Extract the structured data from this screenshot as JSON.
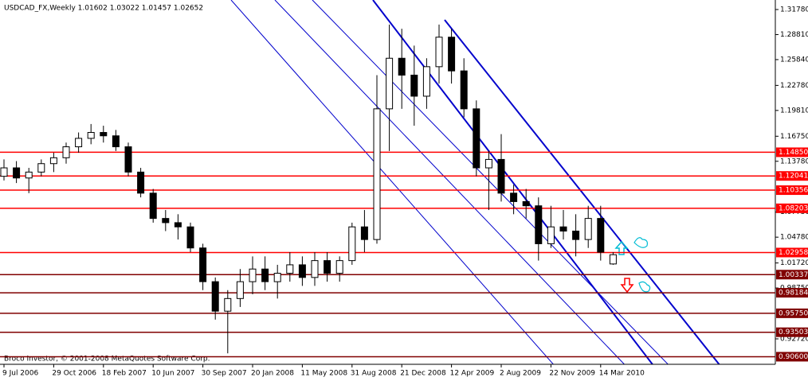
{
  "chart_data": {
    "type": "candlestick",
    "title": "USDCAD_FX,Weekly  1.01602 1.03022 1.01457 1.02652",
    "footer": "Broco Investor, © 2001-2008 MetaQuotes Software Corp.",
    "categories": [
      "9 Jul 2006",
      null,
      null,
      null,
      "29 Oct 2006",
      null,
      null,
      null,
      "18 Feb 2007",
      null,
      null,
      null,
      "10 Jun 2007",
      null,
      null,
      null,
      "30 Sep 2007",
      null,
      null,
      null,
      "20 Jan 2008",
      null,
      null,
      null,
      "11 May 2008",
      null,
      null,
      null,
      "31 Aug 2008",
      null,
      null,
      null,
      "21 Dec 2008",
      null,
      null,
      null,
      "12 Apr 2009",
      null,
      null,
      null,
      "2 Aug 2009",
      null,
      null,
      null,
      "22 Nov 2009",
      null,
      null,
      null,
      "14 Mar 2010",
      null
    ],
    "ohlc": [
      [
        1.12,
        1.14,
        1.115,
        1.13
      ],
      [
        1.13,
        1.138,
        1.112,
        1.118
      ],
      [
        1.118,
        1.13,
        1.1,
        1.125
      ],
      [
        1.125,
        1.14,
        1.12,
        1.135
      ],
      [
        1.135,
        1.148,
        1.125,
        1.142
      ],
      [
        1.142,
        1.16,
        1.135,
        1.155
      ],
      [
        1.155,
        1.172,
        1.148,
        1.165
      ],
      [
        1.165,
        1.182,
        1.158,
        1.172
      ],
      [
        1.172,
        1.18,
        1.16,
        1.168
      ],
      [
        1.168,
        1.175,
        1.15,
        1.155
      ],
      [
        1.155,
        1.16,
        1.12,
        1.125
      ],
      [
        1.125,
        1.13,
        1.095,
        1.1
      ],
      [
        1.1,
        1.105,
        1.065,
        1.07
      ],
      [
        1.07,
        1.08,
        1.055,
        1.065
      ],
      [
        1.065,
        1.075,
        1.045,
        1.06
      ],
      [
        1.06,
        1.065,
        1.03,
        1.035
      ],
      [
        1.035,
        1.04,
        0.985,
        0.995
      ],
      [
        0.995,
        1.0,
        0.95,
        0.96
      ],
      [
        0.96,
        0.985,
        0.91,
        0.975
      ],
      [
        0.975,
        1.01,
        0.965,
        0.995
      ],
      [
        0.995,
        1.025,
        0.98,
        1.01
      ],
      [
        1.01,
        1.025,
        0.985,
        0.995
      ],
      [
        0.995,
        1.015,
        0.975,
        1.005
      ],
      [
        1.005,
        1.03,
        0.995,
        1.015
      ],
      [
        1.015,
        1.025,
        0.99,
        1.0
      ],
      [
        1.0,
        1.03,
        0.99,
        1.02
      ],
      [
        1.02,
        1.03,
        0.995,
        1.005
      ],
      [
        1.005,
        1.025,
        0.995,
        1.02
      ],
      [
        1.02,
        1.065,
        1.015,
        1.06
      ],
      [
        1.06,
        1.08,
        1.03,
        1.045
      ],
      [
        1.045,
        1.24,
        1.04,
        1.2
      ],
      [
        1.2,
        1.3,
        1.15,
        1.26
      ],
      [
        1.26,
        1.295,
        1.2,
        1.24
      ],
      [
        1.24,
        1.275,
        1.18,
        1.215
      ],
      [
        1.215,
        1.26,
        1.2,
        1.25
      ],
      [
        1.25,
        1.3,
        1.23,
        1.285
      ],
      [
        1.285,
        1.295,
        1.23,
        1.245
      ],
      [
        1.245,
        1.26,
        1.19,
        1.2
      ],
      [
        1.2,
        1.21,
        1.12,
        1.13
      ],
      [
        1.13,
        1.15,
        1.08,
        1.14
      ],
      [
        1.14,
        1.17,
        1.09,
        1.1
      ],
      [
        1.1,
        1.11,
        1.075,
        1.09
      ],
      [
        1.09,
        1.105,
        1.07,
        1.085
      ],
      [
        1.085,
        1.095,
        1.02,
        1.04
      ],
      [
        1.04,
        1.085,
        1.035,
        1.06
      ],
      [
        1.06,
        1.08,
        1.045,
        1.055
      ],
      [
        1.055,
        1.075,
        1.025,
        1.045
      ],
      [
        1.045,
        1.085,
        1.035,
        1.07
      ],
      [
        1.07,
        1.085,
        1.02,
        1.03
      ],
      [
        1.016,
        1.03,
        1.015,
        1.027
      ]
    ],
    "ylim": [
      0.897,
      1.3291
    ],
    "yticks": [
      {
        "value": 1.3178,
        "label": "1.31780"
      },
      {
        "value": 1.2881,
        "label": "1.28810"
      },
      {
        "value": 1.2584,
        "label": "1.25840"
      },
      {
        "value": 1.2278,
        "label": "1.22780"
      },
      {
        "value": 1.1981,
        "label": "1.19810"
      },
      {
        "value": 1.1675,
        "label": "1.16750"
      },
      {
        "value": 1.1378,
        "label": "1.13780"
      },
      {
        "value": 1.0775,
        "label": "1.07750"
      },
      {
        "value": 1.0478,
        "label": "1.04780"
      },
      {
        "value": 1.0172,
        "label": "1.01720"
      },
      {
        "value": 0.9875,
        "label": "0.98750"
      },
      {
        "value": 0.9272,
        "label": "0.92720"
      }
    ],
    "levels": [
      {
        "value": 1.1485,
        "label": "1.14850",
        "color": "#ff0000"
      },
      {
        "value": 1.12041,
        "label": "1.12041",
        "color": "#ff0000"
      },
      {
        "value": 1.10356,
        "label": "1.10356",
        "color": "#ff0000"
      },
      {
        "value": 1.08203,
        "label": "1.08203",
        "color": "#ff0000"
      },
      {
        "value": 1.02958,
        "label": "1.02958",
        "color": "#ff0000"
      },
      {
        "value": 1.00337,
        "label": "1.00337",
        "color": "#800000"
      },
      {
        "value": 0.98184,
        "label": "0.98184",
        "color": "#800000"
      },
      {
        "value": 0.9575,
        "label": "0.95750",
        "color": "#800000"
      },
      {
        "value": 0.93503,
        "label": "0.93503",
        "color": "#800000"
      },
      {
        "value": 0.906,
        "label": "0.90600",
        "color": "#800000"
      }
    ]
  }
}
